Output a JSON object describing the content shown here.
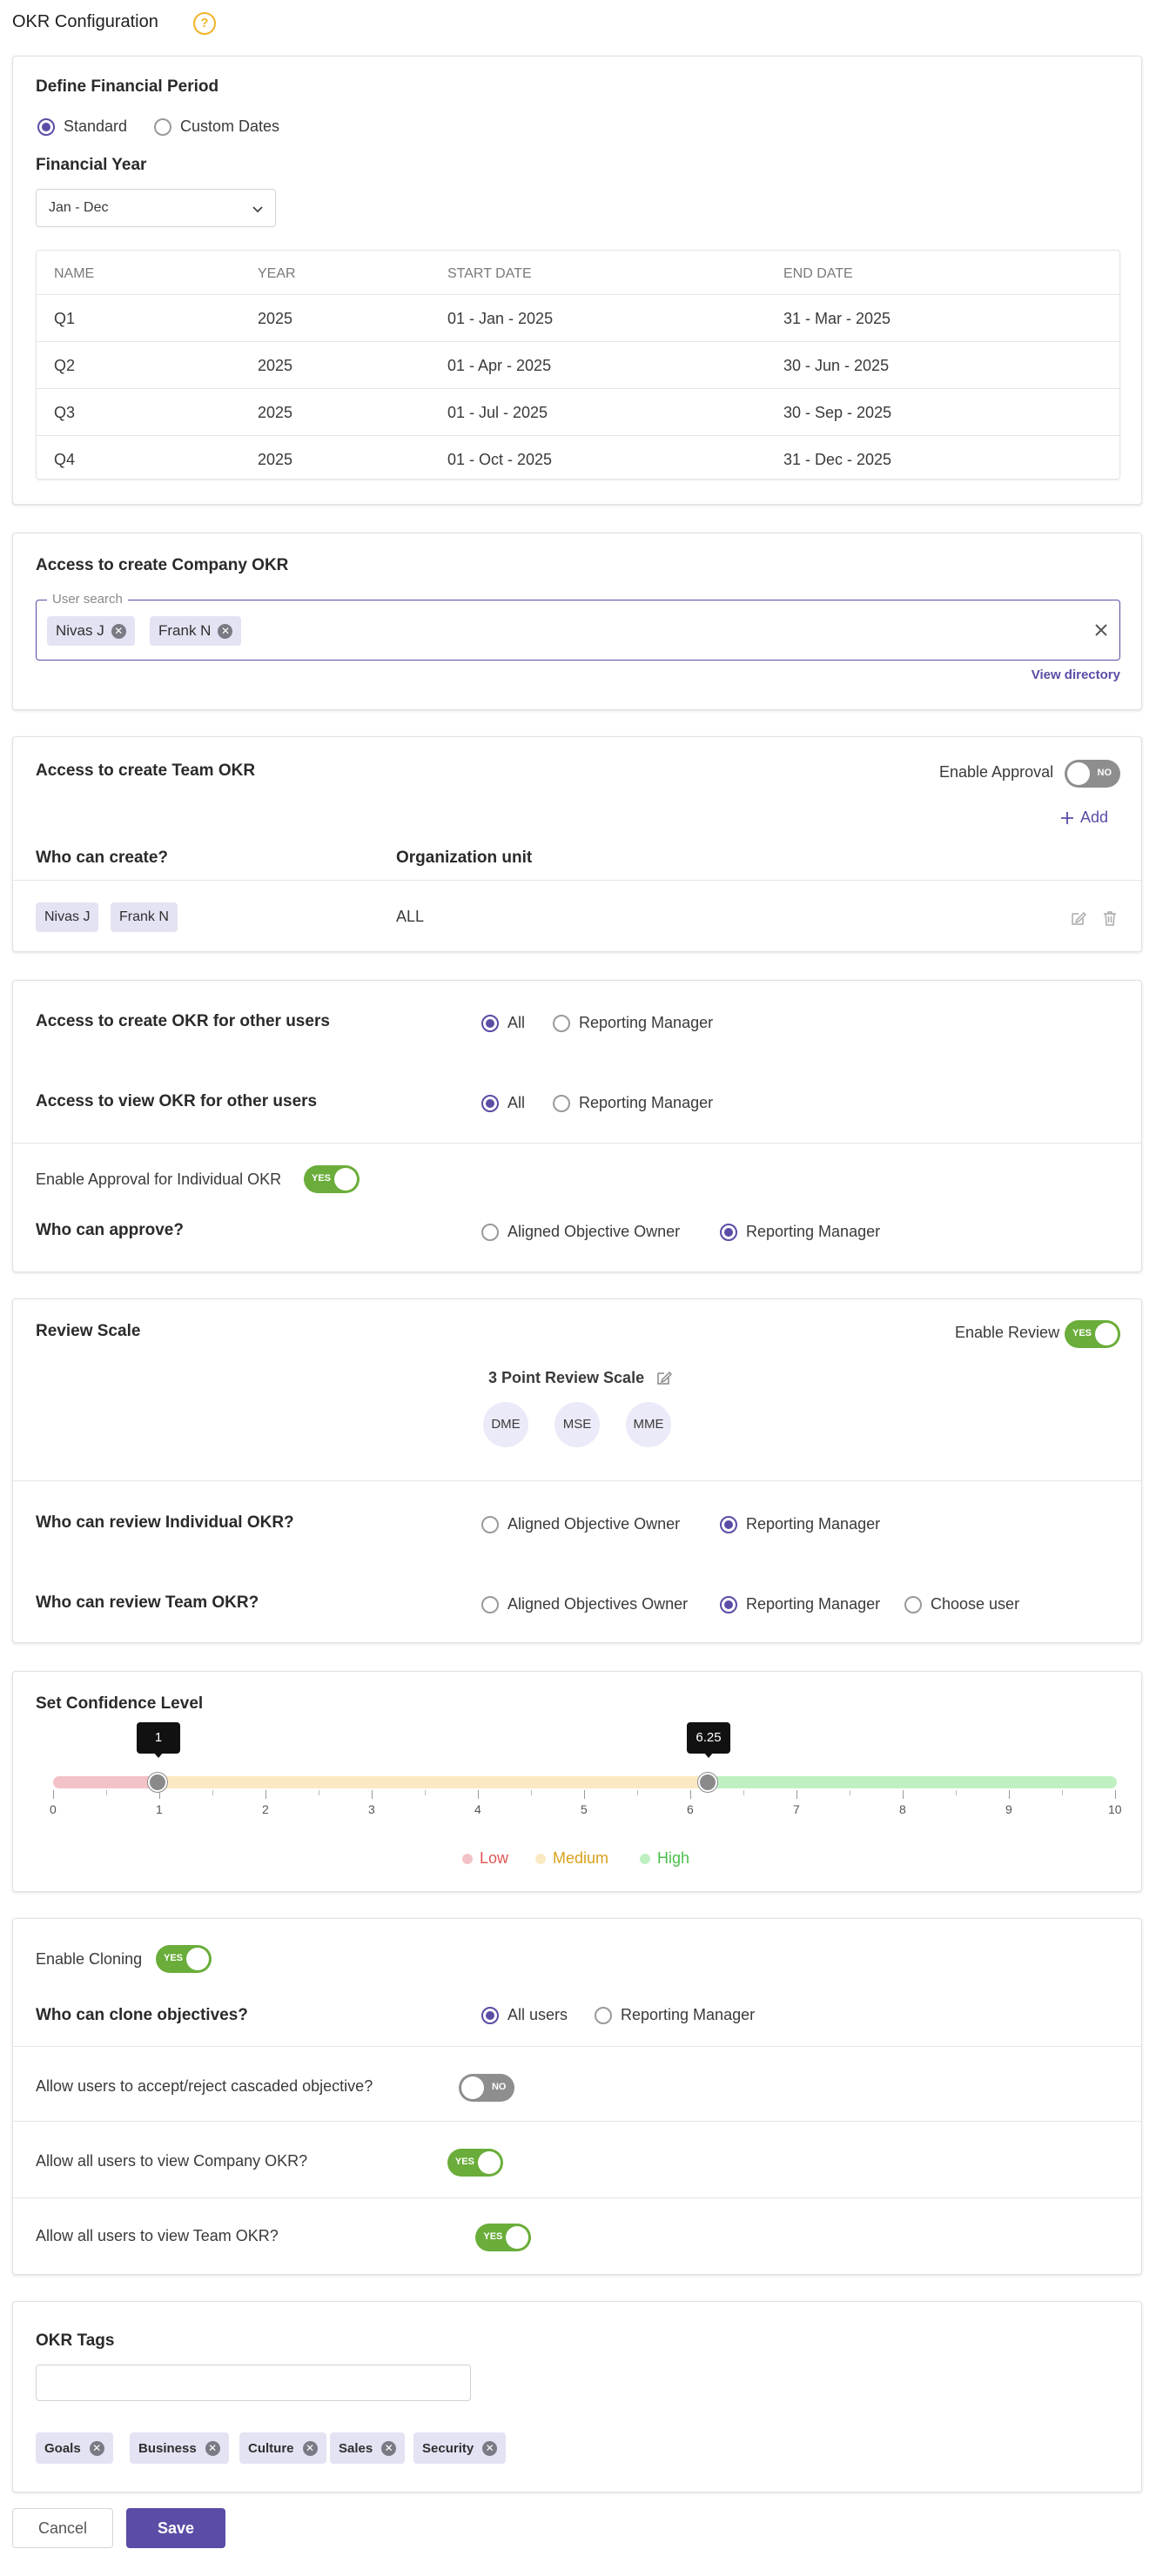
{
  "page": {
    "title": "OKR Configuration",
    "help_icon": "question-circle-icon",
    "accent": "#5b4ca6",
    "success": "#6aad3a"
  },
  "financial_period": {
    "heading": "Define Financial Period",
    "options": [
      "Standard",
      "Custom Dates"
    ],
    "selected": "Standard",
    "fy_label": "Financial Year",
    "fy_value": "Jan - Dec",
    "table": {
      "headers": [
        "NAME",
        "YEAR",
        "START DATE",
        "END DATE"
      ],
      "rows": [
        [
          "Q1",
          "2025",
          "01 - Jan - 2025",
          "31 - Mar - 2025"
        ],
        [
          "Q2",
          "2025",
          "01 - Apr - 2025",
          "30 - Jun - 2025"
        ],
        [
          "Q3",
          "2025",
          "01 - Jul - 2025",
          "30 - Sep - 2025"
        ],
        [
          "Q4",
          "2025",
          "01 - Oct - 2025",
          "31 - Dec - 2025"
        ]
      ]
    }
  },
  "company_okr": {
    "heading": "Access to create Company OKR",
    "search_legend": "User search",
    "users": [
      "Nivas J",
      "Frank N"
    ],
    "view_directory": "View directory"
  },
  "team_okr": {
    "heading": "Access to create Team OKR",
    "enable_approval_label": "Enable Approval",
    "enable_approval": "NO",
    "add_label": "Add",
    "col_who": "Who can create?",
    "col_org": "Organization unit",
    "users": [
      "Nivas J",
      "Frank N"
    ],
    "org_value": "ALL"
  },
  "other_users": {
    "create_label": "Access to create OKR for other users",
    "view_label": "Access to view OKR for other users",
    "options": [
      "All",
      "Reporting Manager"
    ],
    "create_selected": "All",
    "view_selected": "All",
    "approval_label": "Enable Approval for Individual OKR",
    "approval_toggle": "YES",
    "approve_label": "Who can approve?",
    "approve_options": [
      "Aligned Objective Owner",
      "Reporting Manager"
    ],
    "approve_selected": "Reporting Manager"
  },
  "review": {
    "heading": "Review Scale",
    "enable_label": "Enable Review",
    "enable_toggle": "YES",
    "scale_title": "3 Point Review Scale",
    "scale_items": [
      "DME",
      "MSE",
      "MME"
    ],
    "individual_label": "Who can review Individual OKR?",
    "individual_options": [
      "Aligned Objective Owner",
      "Reporting Manager"
    ],
    "individual_selected": "Reporting Manager",
    "team_label": "Who can review Team OKR?",
    "team_options": [
      "Aligned Objectives Owner",
      "Reporting Manager",
      "Choose user"
    ],
    "team_selected": "Reporting Manager"
  },
  "confidence": {
    "heading": "Set Confidence Level",
    "low_value": "1",
    "high_value": "6.25",
    "ticks": [
      "0",
      "1",
      "2",
      "3",
      "4",
      "5",
      "6",
      "7",
      "8",
      "9",
      "10"
    ],
    "legend": [
      "Low",
      "Medium",
      "High"
    ],
    "colors": {
      "low": "#f3c2c6",
      "medium": "#fbe9c4",
      "high": "#bff0c2",
      "low_text": "#e05555",
      "medium_text": "#d9a21e",
      "high_text": "#4bbf4b"
    }
  },
  "cloning": {
    "enable_label": "Enable Cloning",
    "enable_toggle": "YES",
    "who_label": "Who can clone objectives?",
    "who_options": [
      "All users",
      "Reporting Manager"
    ],
    "who_selected": "All users",
    "cascade_label": "Allow users to accept/reject cascaded objective?",
    "cascade_toggle": "NO",
    "company_view_label": "Allow all users to view Company OKR?",
    "company_view_toggle": "YES",
    "team_view_label": "Allow all users to view Team OKR?",
    "team_view_toggle": "YES"
  },
  "tags": {
    "heading": "OKR Tags",
    "items": [
      "Goals",
      "Business",
      "Culture",
      "Sales",
      "Security"
    ]
  },
  "actions": {
    "cancel": "Cancel",
    "save": "Save"
  }
}
